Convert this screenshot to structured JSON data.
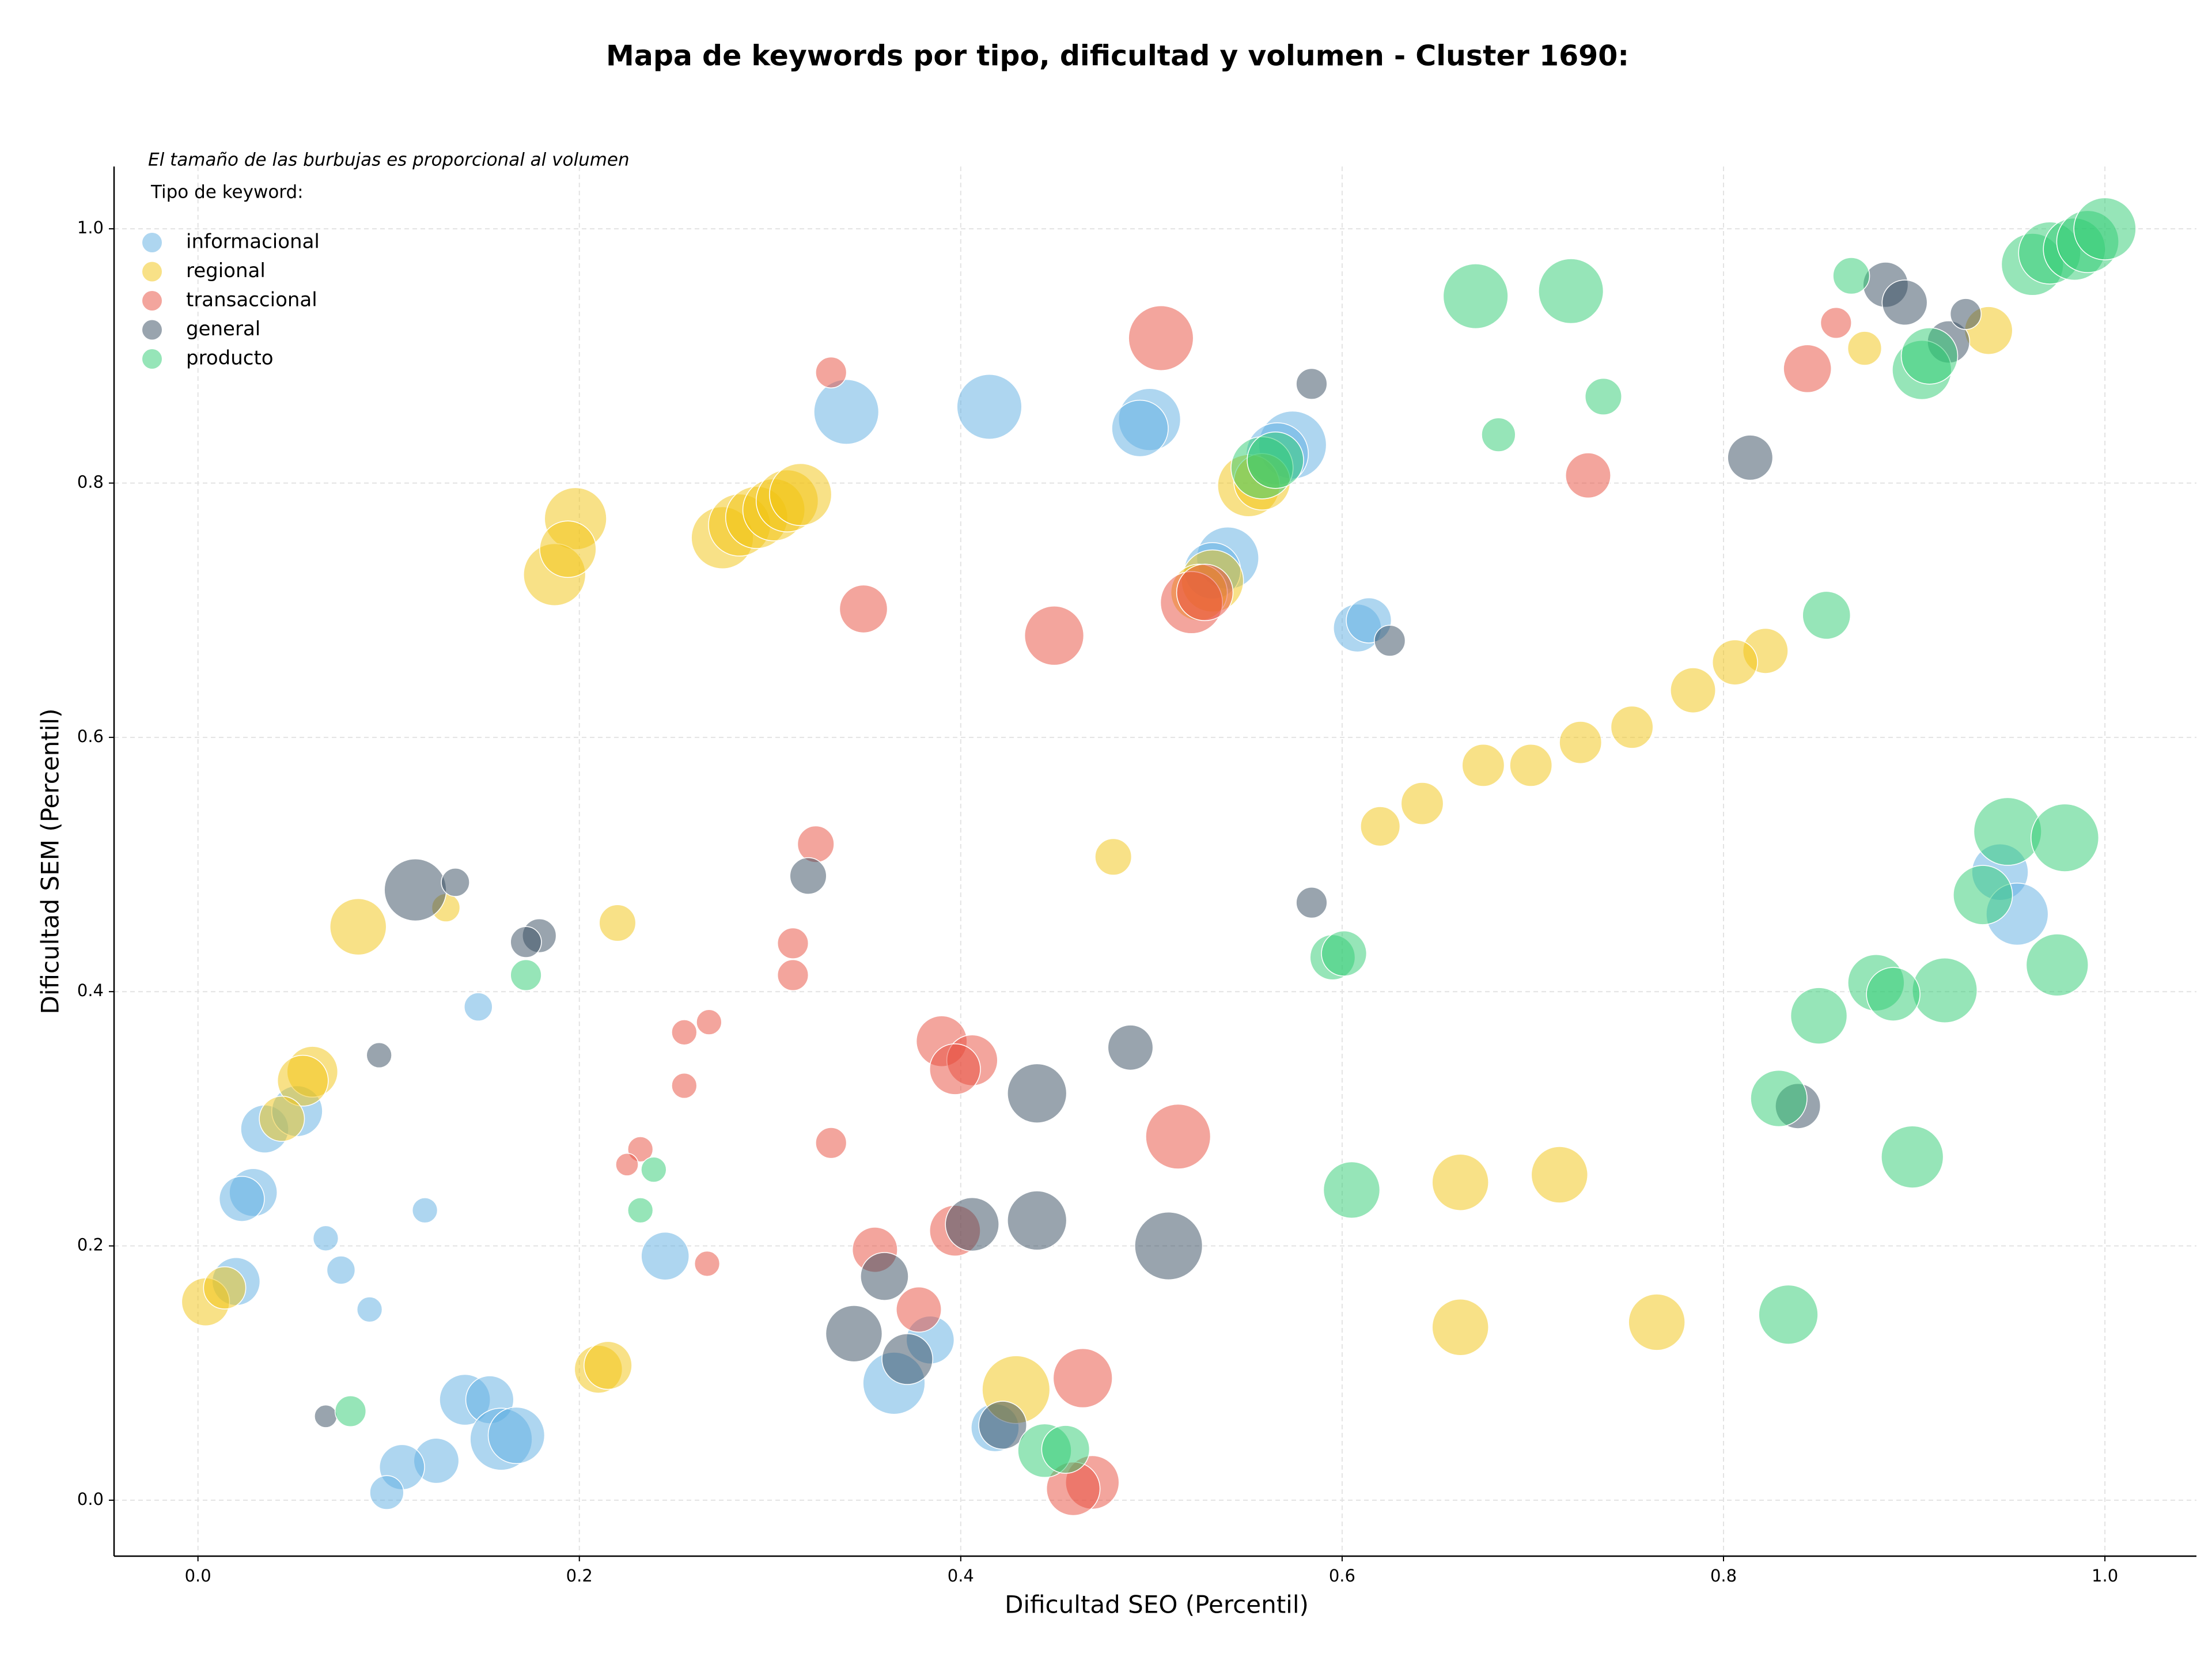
{
  "chart_data": {
    "type": "scatter",
    "title": "Mapa de keywords por tipo, dificultad y volumen - Cluster 1690:",
    "annotation": "El tamaño de las burbujas es proporcional al volumen",
    "legend_title": "Tipo de keyword:",
    "legend_position": "upper left",
    "xlabel": "Dificultad SEO (Percentil)",
    "ylabel": "Dificultad SEM (Percentil)",
    "xlim": [
      -0.044,
      1.048
    ],
    "ylim": [
      -0.044,
      1.049
    ],
    "xticks": [
      {
        "value": 0,
        "label": "0.0"
      },
      0.2,
      0.4,
      0.6,
      0.8,
      {
        "value": 1,
        "label": "1.0"
      }
    ],
    "yticks": [
      {
        "value": 0,
        "label": "0.0"
      },
      0.2,
      0.4,
      0.6,
      0.8,
      {
        "value": 1,
        "label": "1.0"
      }
    ],
    "grid": true,
    "series": [
      {
        "name": "informacional",
        "color": "#5dade2",
        "x": [
          0.34,
          0.415,
          0.499,
          0.494,
          0.574,
          0.566,
          0.54,
          0.532,
          0.608,
          0.614,
          0.945,
          0.954,
          0.147,
          0.035,
          0.052,
          0.029,
          0.023,
          0.02,
          0.067,
          0.075,
          0.09,
          0.119,
          0.245,
          0.14,
          0.153,
          0.159,
          0.167,
          0.125,
          0.107,
          0.099,
          0.365,
          0.384,
          0.418
        ],
        "y": [
          0.856,
          0.86,
          0.85,
          0.843,
          0.83,
          0.823,
          0.741,
          0.731,
          0.686,
          0.692,
          0.494,
          0.461,
          0.388,
          0.292,
          0.306,
          0.242,
          0.237,
          0.172,
          0.206,
          0.181,
          0.15,
          0.228,
          0.192,
          0.079,
          0.079,
          0.048,
          0.051,
          0.031,
          0.026,
          0.006,
          0.092,
          0.126,
          0.057
        ],
        "sizes": [
          132,
          132,
          121,
          100,
          144,
          121,
          121,
          100,
          72,
          64,
          100,
          121,
          25,
          72,
          81,
          72,
          64,
          72,
          20,
          25,
          20,
          20,
          72,
          81,
          72,
          121,
          100,
          64,
          64,
          36,
          121,
          72,
          72
        ]
      },
      {
        "name": "regional",
        "color": "#f1c40f",
        "x": [
          0.198,
          0.187,
          0.194,
          0.275,
          0.284,
          0.293,
          0.302,
          0.309,
          0.316,
          0.551,
          0.558,
          0.532,
          0.525,
          0.939,
          0.874,
          0.822,
          0.806,
          0.784,
          0.752,
          0.725,
          0.699,
          0.674,
          0.642,
          0.62,
          0.084,
          0.13,
          0.22,
          0.06,
          0.055,
          0.044,
          0.004,
          0.014,
          0.21,
          0.215,
          0.429,
          0.662,
          0.714,
          0.662,
          0.765,
          0.48
        ],
        "y": [
          0.772,
          0.728,
          0.748,
          0.757,
          0.767,
          0.773,
          0.779,
          0.786,
          0.791,
          0.798,
          0.801,
          0.723,
          0.714,
          0.92,
          0.906,
          0.668,
          0.659,
          0.637,
          0.608,
          0.596,
          0.578,
          0.578,
          0.548,
          0.53,
          0.451,
          0.466,
          0.454,
          0.337,
          0.33,
          0.3,
          0.156,
          0.167,
          0.103,
          0.106,
          0.087,
          0.25,
          0.256,
          0.136,
          0.14,
          0.506
        ],
        "sizes": [
          121,
          121,
          100,
          121,
          121,
          121,
          121,
          121,
          121,
          121,
          100,
          121,
          100,
          72,
          36,
          64,
          64,
          64,
          56,
          56,
          56,
          56,
          56,
          49,
          100,
          25,
          42,
          81,
          81,
          64,
          72,
          56,
          72,
          72,
          144,
          100,
          100,
          100,
          100,
          42
        ]
      },
      {
        "name": "transaccional",
        "color": "#e74c3c",
        "x": [
          0.332,
          0.505,
          0.349,
          0.449,
          0.521,
          0.528,
          0.729,
          0.844,
          0.859,
          0.324,
          0.312,
          0.312,
          0.255,
          0.268,
          0.255,
          0.232,
          0.225,
          0.332,
          0.267,
          0.514,
          0.39,
          0.406,
          0.397,
          0.355,
          0.397,
          0.378,
          0.464,
          0.469,
          0.459
        ],
        "y": [
          0.887,
          0.914,
          0.701,
          0.68,
          0.706,
          0.714,
          0.806,
          0.89,
          0.926,
          0.516,
          0.438,
          0.413,
          0.368,
          0.376,
          0.326,
          0.276,
          0.264,
          0.281,
          0.186,
          0.286,
          0.361,
          0.346,
          0.339,
          0.197,
          0.212,
          0.15,
          0.096,
          0.014,
          0.009
        ],
        "sizes": [
          30,
          132,
          72,
          110,
          121,
          100,
          64,
          72,
          30,
          42,
          30,
          30,
          20,
          20,
          20,
          20,
          16,
          30,
          20,
          132,
          81,
          81,
          81,
          64,
          81,
          64,
          110,
          90,
          90
        ]
      },
      {
        "name": "general",
        "color": "#34495e",
        "x": [
          0.114,
          0.135,
          0.179,
          0.172,
          0.095,
          0.32,
          0.067,
          0.44,
          0.489,
          0.406,
          0.44,
          0.509,
          0.36,
          0.344,
          0.372,
          0.422,
          0.584,
          0.584,
          0.625,
          0.814,
          0.885,
          0.895,
          0.918,
          0.927,
          0.839
        ],
        "y": [
          0.48,
          0.486,
          0.444,
          0.439,
          0.35,
          0.491,
          0.066,
          0.32,
          0.356,
          0.217,
          0.22,
          0.2,
          0.176,
          0.131,
          0.111,
          0.059,
          0.878,
          0.47,
          0.676,
          0.82,
          0.956,
          0.942,
          0.911,
          0.933,
          0.31
        ],
        "sizes": [
          121,
          25,
          36,
          30,
          20,
          42,
          16,
          110,
          64,
          90,
          110,
          144,
          72,
          100,
          81,
          72,
          30,
          30,
          30,
          64,
          64,
          64,
          56,
          30,
          64
        ]
      },
      {
        "name": "producto",
        "color": "#2ecc71",
        "x": [
          0.67,
          0.72,
          0.867,
          0.737,
          0.682,
          0.558,
          0.565,
          0.904,
          0.908,
          0.962,
          0.971,
          0.984,
          0.991,
          1.0,
          0.854,
          0.949,
          0.979,
          0.936,
          0.916,
          0.88,
          0.889,
          0.975,
          0.85,
          0.829,
          0.899,
          0.834,
          0.605,
          0.595,
          0.601,
          0.172,
          0.239,
          0.232,
          0.08,
          0.444,
          0.455
        ],
        "y": [
          0.947,
          0.951,
          0.963,
          0.868,
          0.838,
          0.812,
          0.818,
          0.889,
          0.9,
          0.972,
          0.981,
          0.984,
          0.99,
          1.0,
          0.696,
          0.526,
          0.521,
          0.476,
          0.401,
          0.407,
          0.398,
          0.421,
          0.381,
          0.316,
          0.27,
          0.146,
          0.244,
          0.427,
          0.43,
          0.413,
          0.26,
          0.228,
          0.07,
          0.039,
          0.04
        ],
        "sizes": [
          132,
          132,
          42,
          42,
          36,
          121,
          100,
          110,
          100,
          121,
          121,
          121,
          121,
          121,
          72,
          144,
          144,
          110,
          132,
          100,
          90,
          121,
          100,
          100,
          121,
          110,
          100,
          64,
          64,
          30,
          20,
          20,
          30,
          90,
          72
        ]
      }
    ]
  }
}
